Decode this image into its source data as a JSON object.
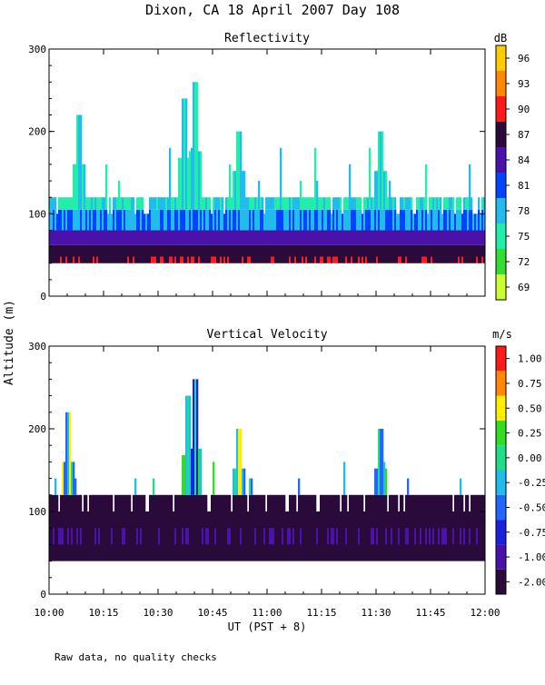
{
  "title": "Dixon, CA 18 April 2007  Day 108",
  "y_axis_label": "Altitude (m)",
  "x_axis_label": "UT  (PST + 8)",
  "footnote": "Raw data, no quality checks",
  "colors": {
    "background": "#ffffff",
    "axis": "#000000"
  },
  "chart_data": [
    {
      "type": "heatmap",
      "title": "Reflectivity",
      "xlabel": "UT  (PST + 8)",
      "ylabel": "Altitude (m)",
      "x_ticks": [
        "10:00",
        "10:15",
        "10:30",
        "10:45",
        "11:00",
        "11:15",
        "11:30",
        "11:45",
        "12:00"
      ],
      "xlim": [
        "10:00",
        "12:00"
      ],
      "ylim": [
        0,
        300
      ],
      "y_ticks": [
        0,
        100,
        200,
        300
      ],
      "colorbar": {
        "unit": "dB",
        "labels": [
          "69",
          "72",
          "75",
          "78",
          "81",
          "84",
          "87",
          "90",
          "93",
          "96"
        ],
        "colors": [
          "#ccff33",
          "#33dd33",
          "#22eeaa",
          "#22bbee",
          "#0044ff",
          "#4a12aa",
          "#2a0a3a",
          "#ff1a1a",
          "#ff8800",
          "#ffcc00"
        ]
      },
      "data_extent": {
        "bottom_m": 40,
        "typical_top_m": 120,
        "peaks": [
          {
            "time": "10:08",
            "alt_m": 220
          },
          {
            "time": "10:37",
            "alt_m": 240
          },
          {
            "time": "10:40",
            "alt_m": 260
          },
          {
            "time": "10:52",
            "alt_m": 200
          },
          {
            "time": "11:31",
            "alt_m": 200
          }
        ]
      }
    },
    {
      "type": "heatmap",
      "title": "Vertical Velocity",
      "xlabel": "UT  (PST + 8)",
      "ylabel": "Altitude (m)",
      "x_ticks": [
        "10:00",
        "10:15",
        "10:30",
        "10:45",
        "11:00",
        "11:15",
        "11:30",
        "11:45",
        "12:00"
      ],
      "xlim": [
        "10:00",
        "12:00"
      ],
      "ylim": [
        0,
        300
      ],
      "y_ticks": [
        0,
        100,
        200,
        300
      ],
      "colorbar": {
        "unit": "m/s",
        "labels": [
          "-2.00",
          "-1.00",
          "-0.75",
          "-0.50",
          "-0.25",
          "0.00",
          "0.25",
          "0.50",
          "0.75",
          "1.00"
        ],
        "colors": [
          "#2a0a3a",
          "#4a12aa",
          "#1a22dd",
          "#2266ff",
          "#22bbee",
          "#22dd88",
          "#33dd22",
          "#ffee00",
          "#ff8800",
          "#ff1a1a"
        ]
      },
      "data_extent": {
        "bottom_m": 40,
        "typical_top_m": 120,
        "peaks": [
          {
            "time": "10:05",
            "alt_m": 220
          },
          {
            "time": "10:38",
            "alt_m": 240
          },
          {
            "time": "10:40",
            "alt_m": 260
          },
          {
            "time": "10:52",
            "alt_m": 200
          },
          {
            "time": "11:31",
            "alt_m": 200
          }
        ]
      }
    }
  ]
}
